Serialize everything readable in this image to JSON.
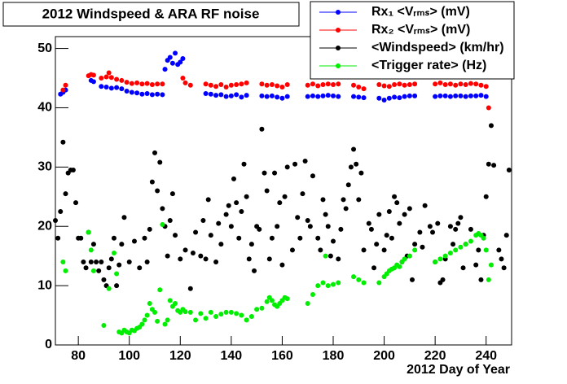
{
  "chart_data": {
    "type": "scatter",
    "title": "2012 Windspeed & ARA RF noise",
    "xlabel": "2012 Day of Year",
    "xlim": [
      71,
      250
    ],
    "ylim": [
      0,
      52
    ],
    "xticks": [
      80,
      100,
      120,
      140,
      160,
      180,
      200,
      220,
      240
    ],
    "yticks": [
      0,
      10,
      20,
      30,
      40,
      50
    ],
    "series": [
      {
        "name": "Rx₁ <Vᵣₘₛ> (mV)",
        "color": "#0000ff",
        "x": [
          73,
          74,
          75,
          85,
          86,
          89,
          91,
          93,
          95,
          97,
          99,
          101,
          103,
          105,
          107,
          109,
          111,
          113,
          114,
          115,
          116,
          117,
          118,
          119,
          120,
          121,
          130,
          132,
          134,
          136,
          138,
          140,
          142,
          144,
          146,
          152,
          154,
          156,
          158,
          160,
          162,
          170,
          172,
          174,
          176,
          178,
          180,
          182,
          188,
          190,
          192,
          198,
          200,
          202,
          204,
          206,
          208,
          210,
          212,
          220,
          222,
          224,
          226,
          228,
          230,
          232,
          234,
          236,
          238,
          240
        ],
        "values": [
          42.3,
          42.6,
          43,
          44.6,
          44.4,
          43.6,
          43.5,
          43.3,
          43.4,
          43.2,
          42.8,
          42.6,
          42.5,
          42.3,
          42.4,
          42.2,
          42.3,
          42.2,
          46.5,
          48,
          48.5,
          47.5,
          49.2,
          47.3,
          47.7,
          48.3,
          42.4,
          42.3,
          42.1,
          42.2,
          41.9,
          42,
          42.2,
          41.8,
          42.1,
          42,
          41.9,
          42,
          41.8,
          41.6,
          41.9,
          41.9,
          42,
          41.9,
          42,
          42.1,
          42,
          41.9,
          41.9,
          41.8,
          41.7,
          41.6,
          41.3,
          41.6,
          41.8,
          41.7,
          41.9,
          42,
          42,
          41.9,
          42,
          42,
          41.9,
          42,
          42,
          41.9,
          42,
          42,
          42.1,
          41.9
        ]
      },
      {
        "name": "Rx₂ <Vᵣₘₛ> (mV)",
        "color": "#ff0000",
        "x": [
          74,
          75,
          84,
          85,
          86,
          89,
          91,
          92,
          93,
          95,
          97,
          99,
          101,
          103,
          105,
          107,
          109,
          111,
          113,
          121,
          122,
          124,
          130,
          132,
          134,
          136,
          138,
          140,
          142,
          144,
          146,
          152,
          154,
          156,
          158,
          160,
          162,
          170,
          172,
          174,
          176,
          178,
          180,
          182,
          188,
          190,
          192,
          198,
          200,
          202,
          204,
          206,
          208,
          210,
          212,
          220,
          222,
          224,
          226,
          228,
          230,
          232,
          234,
          236,
          238,
          240,
          241
        ],
        "values": [
          43,
          43.8,
          45.4,
          45.6,
          45.5,
          45,
          45.2,
          45.9,
          45.1,
          44.8,
          44.6,
          44.3,
          44.1,
          44.2,
          44,
          44.1,
          43.9,
          44,
          44,
          45,
          44.2,
          43.8,
          44,
          43.8,
          43.6,
          43.9,
          43.5,
          43.8,
          43.9,
          44,
          44.2,
          44,
          43.8,
          43.9,
          43.7,
          43.5,
          43.9,
          43.8,
          44,
          43.7,
          43.9,
          44,
          43.9,
          44,
          43.8,
          43.5,
          43.2,
          43.9,
          43.7,
          43.6,
          43.9,
          44,
          43.8,
          43.9,
          44,
          44,
          44.2,
          43.9,
          44,
          43.8,
          44,
          43.9,
          44.1,
          44,
          43.8,
          43.6,
          40
        ]
      },
      {
        "name": "<Windspeed> (km/hr)",
        "color": "#000000",
        "x": [
          71,
          72,
          73,
          74,
          75,
          76,
          77,
          78,
          79,
          80,
          81,
          82,
          83,
          84,
          85,
          86,
          87,
          88,
          89,
          90,
          91,
          92,
          93,
          94,
          95,
          96,
          97,
          98,
          100,
          102,
          104,
          106,
          107,
          108,
          109,
          110,
          111,
          112,
          113,
          114,
          115,
          116,
          117,
          118,
          120,
          122,
          124,
          125,
          126,
          128,
          129,
          130,
          131,
          132,
          134,
          135,
          136,
          138,
          139,
          140,
          141,
          142,
          143,
          144,
          145,
          146,
          147,
          148,
          149,
          150,
          151,
          152,
          153,
          154,
          155,
          156,
          157,
          158,
          159,
          160,
          161,
          162,
          164,
          165,
          166,
          167,
          168,
          169,
          170,
          171,
          172,
          174,
          175,
          176,
          177,
          178,
          179,
          180,
          182,
          183,
          184,
          185,
          186,
          187,
          188,
          189,
          190,
          191,
          192,
          194,
          195,
          196,
          197,
          198,
          200,
          201,
          202,
          203,
          204,
          205,
          206,
          207,
          208,
          209,
          210,
          211,
          212,
          214,
          215,
          216,
          218,
          219,
          220,
          221,
          222,
          223,
          224,
          226,
          227,
          228,
          229,
          230,
          231,
          232,
          234,
          236,
          237,
          238,
          239,
          240,
          241,
          242,
          243,
          245,
          246,
          247,
          248,
          249
        ],
        "values": [
          21,
          18,
          22.5,
          34.2,
          25.5,
          29,
          29.5,
          29.5,
          24,
          18,
          18,
          14,
          13,
          19,
          14,
          17,
          14,
          12.5,
          14,
          11,
          10,
          13,
          14.5,
          18,
          10,
          13.5,
          17,
          21.5,
          14,
          17.5,
          13,
          18,
          14,
          19.5,
          27.5,
          32.4,
          26,
          30.8,
          23,
          20,
          15,
          21,
          25.5,
          18.5,
          14.5,
          16,
          9.5,
          15.5,
          19,
          15,
          21,
          14.5,
          24.5,
          18.5,
          14,
          20.5,
          17,
          22,
          23.5,
          20,
          28,
          24,
          18,
          22.5,
          30.5,
          25,
          14.5,
          17,
          12.5,
          20,
          19.5,
          36.4,
          29,
          26,
          14.5,
          18,
          29,
          20,
          24,
          13.5,
          25,
          30,
          16,
          30.5,
          21.5,
          18,
          25.5,
          31,
          21,
          20,
          28.5,
          18,
          16,
          24.5,
          22,
          20,
          15,
          17.5,
          14.5,
          19.5,
          24.5,
          23,
          27,
          30,
          33,
          30.5,
          24.5,
          29,
          16,
          20.5,
          19.5,
          13,
          17,
          22,
          16,
          18.5,
          22.5,
          18,
          25,
          24,
          20.5,
          14,
          22,
          15,
          23,
          11,
          17,
          19,
          16.5,
          23.5,
          20,
          19,
          14,
          20.5,
          10.5,
          11,
          14.5,
          20,
          17,
          19.5,
          20.5,
          21.5,
          13,
          17,
          19.5,
          13.5,
          16,
          11,
          18.5,
          25,
          30.5,
          37,
          30.3,
          16,
          14.5,
          13,
          18.5,
          29.5
        ]
      },
      {
        "name": "<Trigger rate> (Hz)",
        "color": "#00ee00",
        "x": [
          74,
          75,
          84,
          85,
          86,
          90,
          92,
          94,
          95,
          96,
          97,
          98,
          99,
          100,
          101,
          102,
          103,
          104,
          105,
          106,
          107,
          108,
          109,
          110,
          111,
          112,
          113,
          114,
          115,
          116,
          117,
          118,
          119,
          120,
          121,
          122,
          124,
          126,
          128,
          130,
          132,
          134,
          136,
          138,
          140,
          142,
          144,
          146,
          148,
          150,
          152,
          154,
          155,
          156,
          157,
          158,
          159,
          160,
          161,
          162,
          170,
          172,
          174,
          176,
          177,
          178,
          180,
          182,
          188,
          190,
          192,
          198,
          200,
          201,
          202,
          203,
          204,
          205,
          206,
          207,
          208,
          210,
          212,
          220,
          222,
          224,
          226,
          228,
          230,
          232,
          234,
          236,
          237,
          238,
          239,
          240,
          241,
          242
        ],
        "values": [
          14,
          12.5,
          19,
          16,
          12.5,
          3.3,
          9.5,
          15.5,
          12,
          2.2,
          2,
          2.5,
          2.2,
          2,
          2.5,
          2.4,
          2.8,
          3,
          3.5,
          4.2,
          5,
          7,
          6,
          5.5,
          4,
          9.3,
          20.3,
          3.5,
          4.2,
          7.5,
          6.5,
          7,
          5.8,
          5.5,
          6,
          5.6,
          5.5,
          4.2,
          5.3,
          4.5,
          5.5,
          4.8,
          5.2,
          5.5,
          5.5,
          5.3,
          5,
          4.2,
          4.8,
          6,
          6.2,
          7.3,
          8,
          7.5,
          6.8,
          6.5,
          7,
          7.5,
          8,
          7.8,
          7,
          8.5,
          10,
          10.5,
          15,
          10,
          10.2,
          10.5,
          11.5,
          11,
          10.5,
          10.5,
          11.5,
          12,
          12.5,
          12.8,
          13,
          13.5,
          13.2,
          14,
          14.5,
          15,
          16,
          14,
          14.5,
          15,
          15.5,
          16,
          16.5,
          17,
          17.5,
          18.5,
          18.8,
          18.5,
          18,
          16,
          11,
          13.5
        ]
      }
    ]
  }
}
